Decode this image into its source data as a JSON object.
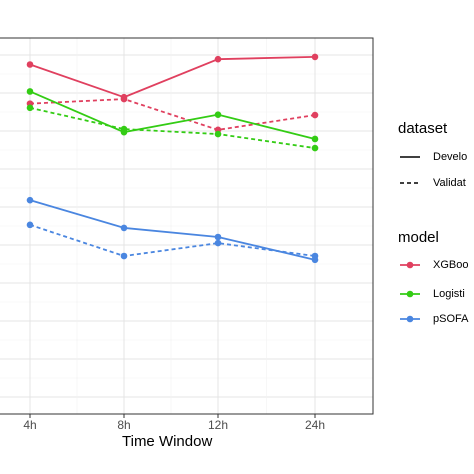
{
  "chart_data": {
    "type": "line",
    "xlabel": "Time Window",
    "ylabel": "",
    "categories": [
      "4h",
      "8h",
      "12h",
      "24h"
    ],
    "ylim": [
      0,
      1
    ],
    "grid": true,
    "legend_placement": "right",
    "legend": {
      "dataset": {
        "title": "dataset",
        "items": [
          {
            "label": "Develo",
            "linetype": "solid"
          },
          {
            "label": "Validat",
            "linetype": "dashed"
          }
        ]
      },
      "model": {
        "title": "model",
        "items": [
          {
            "label": "XGBoo",
            "color": "#e0405f"
          },
          {
            "label": "Logisti",
            "color": "#33cc14"
          },
          {
            "label": "pSOFA",
            "color": "#4a86e0"
          }
        ]
      }
    },
    "series": [
      {
        "model": "XGBoo",
        "dataset": "Develo",
        "color": "#e0405f",
        "linetype": "solid",
        "values": [
          0.875,
          0.789,
          0.889,
          0.895
        ]
      },
      {
        "model": "XGBoo",
        "dataset": "Validat",
        "color": "#e0405f",
        "linetype": "dashed",
        "values": [
          0.772,
          0.784,
          0.703,
          0.742
        ]
      },
      {
        "model": "Logisti",
        "dataset": "Develo",
        "color": "#33cc14",
        "linetype": "solid",
        "values": [
          0.804,
          0.697,
          0.743,
          0.679
        ]
      },
      {
        "model": "Logisti",
        "dataset": "Validat",
        "color": "#33cc14",
        "linetype": "dashed",
        "values": [
          0.761,
          0.705,
          0.692,
          0.655
        ]
      },
      {
        "model": "pSOFA",
        "dataset": "Develo",
        "color": "#4a86e0",
        "linetype": "solid",
        "values": [
          0.518,
          0.445,
          0.421,
          0.361
        ]
      },
      {
        "model": "pSOFA",
        "dataset": "Validat",
        "color": "#4a86e0",
        "linetype": "dashed",
        "values": [
          0.453,
          0.371,
          0.405,
          0.371
        ]
      }
    ]
  }
}
